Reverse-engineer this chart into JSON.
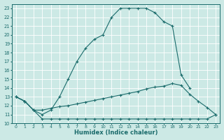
{
  "xlabel": "Humidex (Indice chaleur)",
  "background_color": "#cce9e5",
  "grid_color": "#b8d8d4",
  "line_color": "#1a6b6b",
  "xlim": [
    -0.5,
    23.5
  ],
  "ylim": [
    10,
    23.5
  ],
  "xtick_pos": [
    0,
    1,
    2,
    3,
    4,
    5,
    6,
    7,
    8,
    9,
    10,
    11,
    12,
    13,
    14,
    15,
    16,
    17,
    18,
    19,
    20,
    21,
    22,
    23
  ],
  "ytick_pos": [
    10,
    11,
    12,
    13,
    14,
    15,
    16,
    17,
    18,
    19,
    20,
    21,
    22,
    23
  ],
  "line_max_x": [
    0,
    1,
    2,
    3,
    4,
    5,
    6,
    7,
    8,
    9,
    10,
    11,
    12,
    13,
    14,
    15,
    16,
    17,
    18,
    19,
    20
  ],
  "line_max_y": [
    13,
    12.5,
    11.5,
    11.0,
    11.5,
    13.0,
    15.0,
    17.0,
    18.5,
    19.5,
    20.0,
    22.0,
    23.0,
    23.0,
    23.0,
    23.0,
    22.5,
    21.5,
    21.0,
    15.5,
    14.0
  ],
  "line_mean_x": [
    0,
    1,
    2,
    3,
    4,
    5,
    6,
    7,
    8,
    9,
    10,
    11,
    12,
    13,
    14,
    15,
    16,
    17,
    18,
    19,
    20,
    21,
    22,
    23
  ],
  "line_mean_y": [
    13.0,
    12.5,
    11.5,
    11.5,
    11.7,
    11.9,
    12.0,
    12.2,
    12.4,
    12.6,
    12.8,
    13.0,
    13.2,
    13.4,
    13.6,
    13.9,
    14.1,
    14.2,
    14.5,
    14.3,
    13.3,
    12.5,
    11.8,
    11.0
  ],
  "line_min_x": [
    0,
    1,
    2,
    3,
    4,
    5,
    6,
    7,
    8,
    9,
    10,
    11,
    12,
    13,
    14,
    15,
    16,
    17,
    18,
    19,
    20,
    21,
    22,
    23
  ],
  "line_min_y": [
    13.0,
    12.5,
    11.5,
    10.5,
    10.5,
    10.5,
    10.5,
    10.5,
    10.5,
    10.5,
    10.5,
    10.5,
    10.5,
    10.5,
    10.5,
    10.5,
    10.5,
    10.5,
    10.5,
    10.5,
    10.5,
    10.5,
    10.5,
    11.0
  ]
}
